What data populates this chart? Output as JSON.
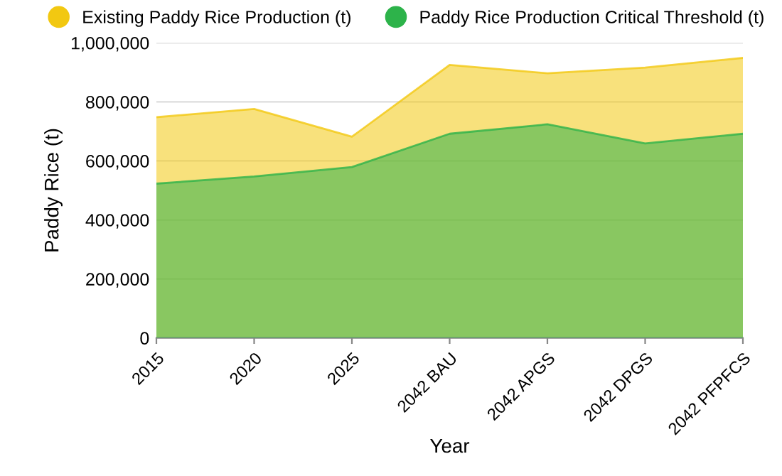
{
  "chart_data": {
    "type": "area",
    "xlabel": "Year",
    "ylabel": "Paddy Rice (t)",
    "categories": [
      "2015",
      "2020",
      "2025",
      "2042 BAU",
      "2042 APGS",
      "2042 DPGS",
      "2042 PFPFCS"
    ],
    "series": [
      {
        "name": "Existing Paddy Rice Production (t)",
        "color": "#f2c811",
        "values": [
          748000,
          776000,
          682000,
          925000,
          897000,
          916000,
          949000
        ]
      },
      {
        "name": "Paddy Rice Production Critical Threshold (t)",
        "color": "#2db34a",
        "values": [
          523000,
          547000,
          579000,
          692000,
          724000,
          659000,
          692000
        ]
      }
    ],
    "ylim": [
      0,
      1000000
    ],
    "yticks": [
      {
        "value": 0,
        "label": "0"
      },
      {
        "value": 200000,
        "label": "200,000"
      },
      {
        "value": 400000,
        "label": "400,000"
      },
      {
        "value": 600000,
        "label": "600,000"
      },
      {
        "value": 800000,
        "label": "800,000"
      },
      {
        "value": 1000000,
        "label": "1,000,000"
      }
    ],
    "grid": "y",
    "legend": "top"
  }
}
